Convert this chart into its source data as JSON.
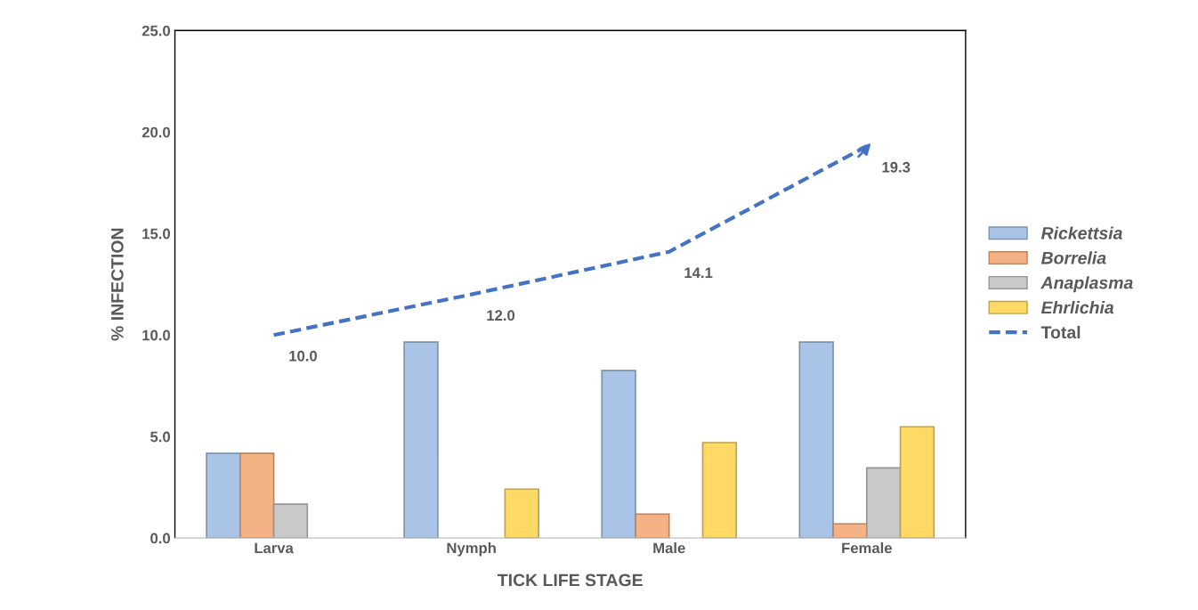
{
  "chart_data": {
    "type": "bar",
    "xlabel": "TICK LIFE STAGE",
    "ylabel": "% INFECTION",
    "categories": [
      "Larva",
      "Nymph",
      "Male",
      "Female"
    ],
    "series": [
      {
        "name": "Rickettsia",
        "color": "#a9c4e6",
        "values": [
          4.17,
          9.65,
          8.25,
          9.65
        ]
      },
      {
        "name": "Borrelia",
        "color": "#f4b183",
        "values": [
          4.17,
          null,
          1.18,
          0.7
        ]
      },
      {
        "name": "Anaplasma",
        "color": "#c9c9c9",
        "values": [
          1.67,
          null,
          null,
          3.46
        ]
      },
      {
        "name": "Ehrlichia",
        "color": "#ffd966",
        "values": [
          null,
          2.41,
          4.7,
          5.48
        ]
      },
      {
        "name": "Total",
        "type": "line",
        "color": "#4472c4",
        "line_style": "dashed",
        "values": [
          10.0,
          12.0,
          14.1,
          19.3
        ],
        "value_labels": [
          "10.0",
          "12.0",
          "14.1",
          "19.3"
        ]
      }
    ],
    "ylim": [
      0,
      25
    ],
    "yticks": [
      {
        "value": 0,
        "label": "0.0"
      },
      {
        "value": 5,
        "label": "5.0"
      },
      {
        "value": 10,
        "label": "10.0"
      },
      {
        "value": 15,
        "label": "15.0"
      },
      {
        "value": 20,
        "label": "20.0"
      },
      {
        "value": 25,
        "label": "25.0"
      }
    ],
    "grid": false,
    "legend": "right"
  }
}
